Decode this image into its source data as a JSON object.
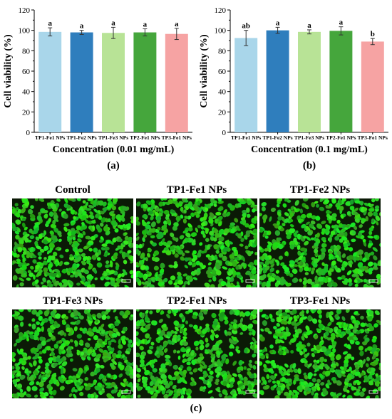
{
  "colors": {
    "bar_fills": [
      "#a9d6ea",
      "#2f7ebd",
      "#b8e396",
      "#45a63c",
      "#f6a3a3"
    ],
    "cell_green": "#2fc02a",
    "cell_background": "#0b1a06"
  },
  "chart_data": [
    {
      "panel": "(a)",
      "type": "bar",
      "categories": [
        "TP1-Fe1 NPs",
        "TP1-Fe2 NPs",
        "TP1-Fe3 NPs",
        "TP2-Fe1 NPs",
        "TP3-Fe1 NPs"
      ],
      "values": [
        98.5,
        98.0,
        97.5,
        98.0,
        96.5
      ],
      "errors": [
        4.0,
        2.0,
        5.5,
        3.5,
        5.5
      ],
      "significance": [
        "a",
        "a",
        "a",
        "a",
        "a"
      ],
      "xlabel": "Concentration (0.01 mg/mL)",
      "ylabel": "Cell viability (%)",
      "ylim": [
        0,
        120
      ],
      "yticks": [
        0,
        20,
        40,
        60,
        80,
        100,
        120
      ],
      "grid": false
    },
    {
      "panel": "(b)",
      "type": "bar",
      "categories": [
        "TP1-Fe1 NPs",
        "TP1-Fe2 NPs",
        "TP1-Fe3 NPs",
        "TP2-Fe1 NPs",
        "TP3-Fe1 NPs"
      ],
      "values": [
        92.5,
        100.0,
        98.5,
        99.5,
        89.0
      ],
      "errors": [
        7.5,
        3.0,
        2.0,
        4.0,
        3.0
      ],
      "significance": [
        "ab",
        "a",
        "a",
        "a",
        "b"
      ],
      "xlabel": "Concentration (0.1 mg/mL)",
      "ylabel": "Cell viability (%)",
      "ylim": [
        0,
        120
      ],
      "yticks": [
        0,
        20,
        40,
        60,
        80,
        100,
        120
      ],
      "grid": false
    }
  ],
  "panel_c": {
    "label": "(c)",
    "images": [
      {
        "title": "Control"
      },
      {
        "title": "TP1-Fe1 NPs"
      },
      {
        "title": "TP1-Fe2 NPs"
      },
      {
        "title": "TP1-Fe3 NPs"
      },
      {
        "title": "TP2-Fe1 NPs"
      },
      {
        "title": "TP3-Fe1 NPs"
      }
    ]
  }
}
